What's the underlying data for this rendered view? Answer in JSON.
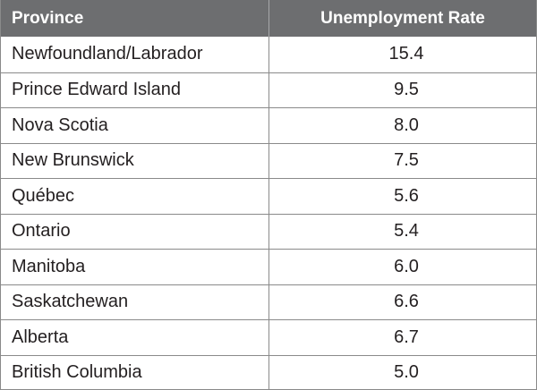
{
  "chart_data": {
    "type": "table",
    "columns": [
      "Province",
      "Unemployment Rate"
    ],
    "rows": [
      {
        "province": "Newfoundland/Labrador",
        "rate": "15.4"
      },
      {
        "province": "Prince Edward Island",
        "rate": "9.5"
      },
      {
        "province": "Nova Scotia",
        "rate": "8.0"
      },
      {
        "province": "New Brunswick",
        "rate": "7.5"
      },
      {
        "province": "Québec",
        "rate": "5.6"
      },
      {
        "province": "Ontario",
        "rate": "5.4"
      },
      {
        "province": "Manitoba",
        "rate": "6.0"
      },
      {
        "province": "Saskatchewan",
        "rate": "6.6"
      },
      {
        "province": "Alberta",
        "rate": "6.7"
      },
      {
        "province": "British Columbia",
        "rate": "5.0"
      }
    ]
  },
  "colors": {
    "header_bg": "#6d6e70",
    "header_text": "#ffffff",
    "border": "#8a8a8a",
    "body_text": "#231f20"
  }
}
